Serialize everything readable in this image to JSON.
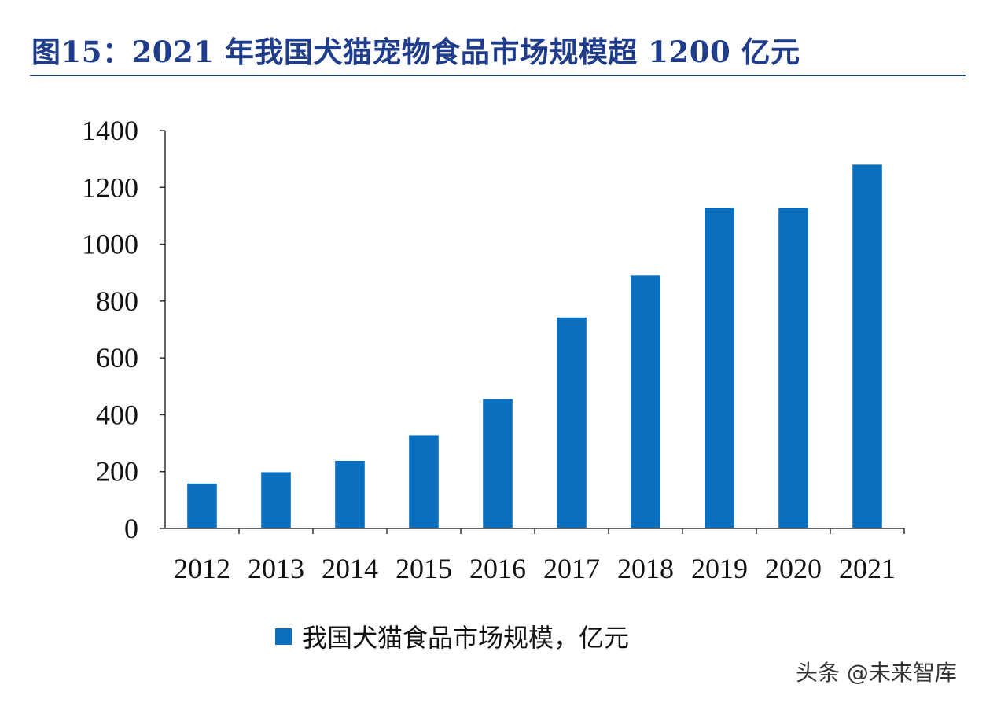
{
  "figure": {
    "title": "图15：2021 年我国犬猫宠物食品市场规模超 1200 亿元"
  },
  "watermark": "头条 @未来智库",
  "colors": {
    "bar": "#0b6fbf",
    "title": "#1f3d8a",
    "axis": "#333333"
  },
  "chart_data": {
    "type": "bar",
    "categories": [
      "2012",
      "2013",
      "2014",
      "2015",
      "2016",
      "2017",
      "2018",
      "2019",
      "2020",
      "2021"
    ],
    "series": [
      {
        "name": "我国犬猫食品市场规模，亿元",
        "values": [
          158,
          198,
          238,
          328,
          455,
          742,
          890,
          1128,
          1128,
          1280
        ]
      }
    ],
    "yticks": [
      0,
      200,
      400,
      600,
      800,
      1000,
      1200,
      1400
    ],
    "ylim": [
      0,
      1400
    ],
    "title": "",
    "xlabel": "",
    "ylabel": "",
    "grid": false,
    "legend_position": "bottom"
  }
}
